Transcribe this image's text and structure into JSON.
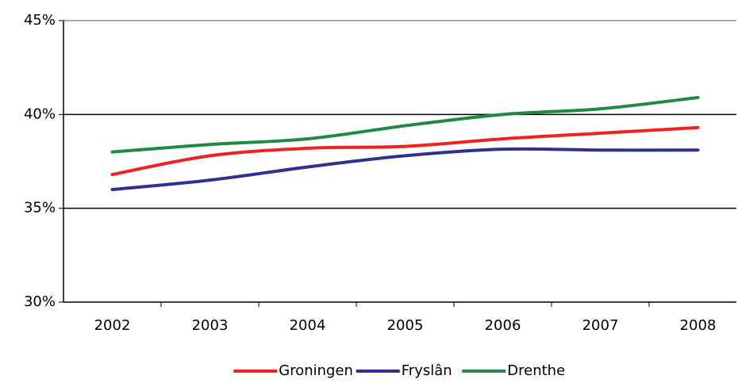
{
  "chart_data": {
    "type": "line",
    "categories": [
      "2002",
      "2003",
      "2004",
      "2005",
      "2006",
      "2007",
      "2008"
    ],
    "series": [
      {
        "name": "Groningen",
        "color": "#ee2222",
        "values": [
          36.8,
          37.8,
          38.2,
          38.3,
          38.7,
          39.0,
          39.3
        ]
      },
      {
        "name": "Fryslân",
        "color": "#2e3192",
        "values": [
          36.0,
          36.5,
          37.2,
          37.8,
          38.15,
          38.1,
          38.1
        ]
      },
      {
        "name": "Drenthe",
        "color": "#1e8a45",
        "values": [
          38.0,
          38.4,
          38.7,
          39.4,
          40.0,
          40.3,
          40.9
        ]
      }
    ],
    "ylim": [
      30,
      45
    ],
    "yticks": [
      {
        "value": 30,
        "label": "30%"
      },
      {
        "value": 35,
        "label": "35%"
      },
      {
        "value": 40,
        "label": "40%"
      },
      {
        "value": 45,
        "label": "45%"
      }
    ],
    "grid": true,
    "legend": "bottom"
  }
}
